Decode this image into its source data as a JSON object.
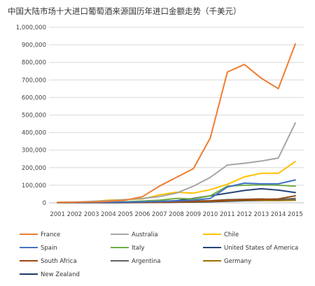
{
  "chart_data": {
    "type": "line",
    "title": "中国大陆市场十大进口葡萄酒来源国历年进口金额走势（千美元）",
    "xlabel": "",
    "ylabel": "",
    "x": [
      "2001",
      "2002",
      "2003",
      "2004",
      "2005",
      "2006",
      "2007",
      "2008",
      "2009",
      "2010",
      "2011",
      "2012",
      "2013",
      "2014",
      "2015"
    ],
    "ylim": [
      0,
      1000000
    ],
    "yticks": [
      0,
      100000,
      200000,
      300000,
      400000,
      500000,
      600000,
      700000,
      800000,
      900000,
      1000000
    ],
    "ytick_labels": [
      "0",
      "100,000",
      "200,000",
      "300,000",
      "400,000",
      "500,000",
      "600,000",
      "700,000",
      "800,000",
      "900,000",
      "1,000,000"
    ],
    "grid": true,
    "legend_position": "bottom",
    "series": [
      {
        "name": "France",
        "color": "#ED7D31",
        "values": [
          2000,
          3000,
          5000,
          8000,
          15000,
          35000,
          95000,
          145000,
          195000,
          370000,
          745000,
          788000,
          710000,
          650000,
          905000
        ]
      },
      {
        "name": "Australia",
        "color": "#A5A5A5",
        "values": [
          3000,
          4000,
          8000,
          12000,
          18000,
          25000,
          35000,
          55000,
          95000,
          145000,
          215000,
          225000,
          238000,
          255000,
          455000
        ]
      },
      {
        "name": "Chile",
        "color": "#FFC000",
        "values": [
          2000,
          3000,
          7000,
          15000,
          18000,
          22000,
          45000,
          60000,
          55000,
          75000,
          105000,
          148000,
          168000,
          168000,
          235000
        ]
      },
      {
        "name": "Spain",
        "color": "#4472C4",
        "values": [
          1000,
          1000,
          2000,
          3000,
          4000,
          6000,
          8000,
          10000,
          15000,
          25000,
          90000,
          112000,
          108000,
          108000,
          130000
        ]
      },
      {
        "name": "Italy",
        "color": "#70AD47",
        "values": [
          1000,
          2000,
          3000,
          4000,
          6000,
          10000,
          15000,
          25000,
          22000,
          40000,
          95000,
          100000,
          102000,
          100000,
          95000
        ]
      },
      {
        "name": "United States of America",
        "color": "#264478",
        "values": [
          1000,
          1000,
          2000,
          2000,
          3000,
          5000,
          8000,
          12000,
          25000,
          40000,
          55000,
          70000,
          80000,
          72000,
          58000
        ]
      },
      {
        "name": "South Africa",
        "color": "#9E480E",
        "values": [
          500,
          500,
          1000,
          1000,
          2000,
          2000,
          3000,
          4000,
          8000,
          10000,
          15000,
          18000,
          20000,
          22000,
          40000
        ]
      },
      {
        "name": "Argentina",
        "color": "#636363",
        "values": [
          500,
          500,
          1000,
          1000,
          2000,
          3000,
          4000,
          5000,
          10000,
          12000,
          18000,
          20000,
          22000,
          18000,
          25000
        ]
      },
      {
        "name": "Germany",
        "color": "#997300",
        "values": [
          500,
          500,
          1000,
          1000,
          1500,
          2000,
          3000,
          4000,
          6000,
          8000,
          12000,
          15000,
          14000,
          13000,
          15000
        ]
      },
      {
        "name": "New Zealand",
        "color": "#203864",
        "values": [
          500,
          500,
          800,
          1000,
          1200,
          1500,
          2000,
          3000,
          4000,
          6000,
          9000,
          12000,
          13000,
          14000,
          16000
        ]
      }
    ]
  }
}
